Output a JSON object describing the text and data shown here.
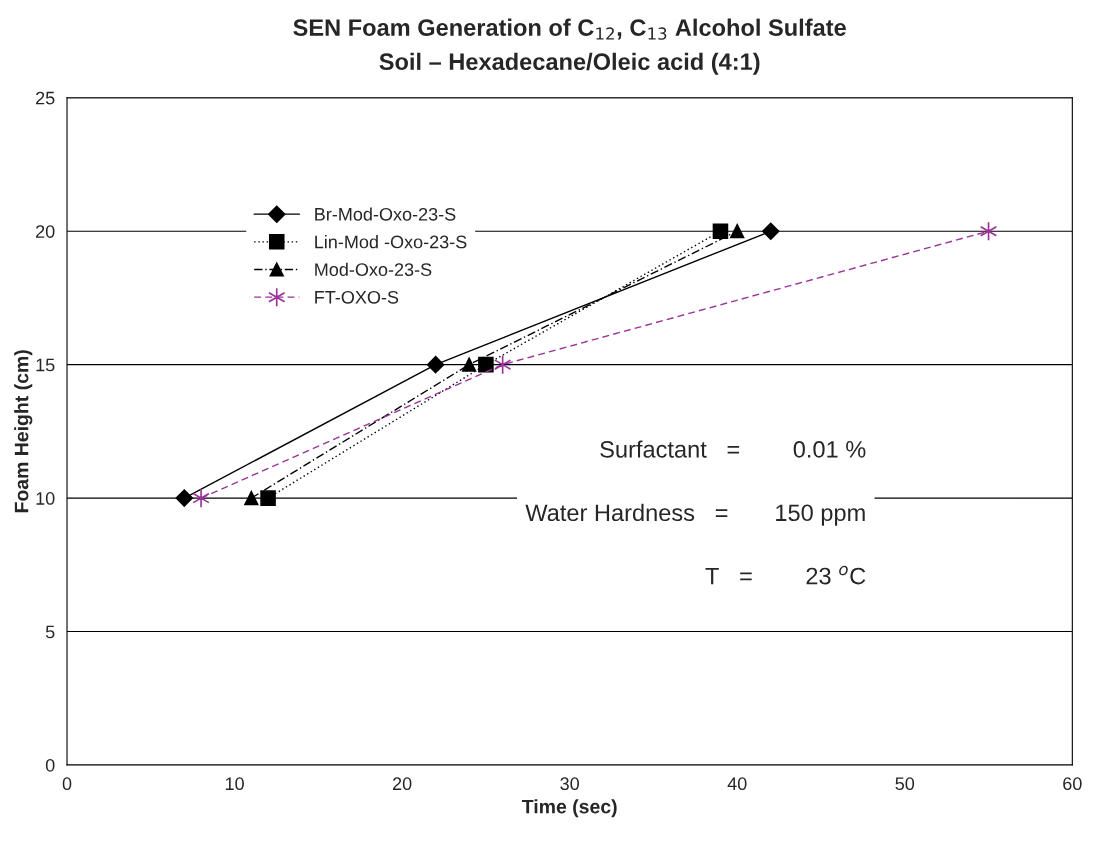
{
  "chart_data": {
    "type": "line",
    "title": "SEN Foam Generation of C$_{12}$, C$_{13}$ Alcohol Sulfate",
    "subtitle": "Soil – Hexadecane/Oleic acid (4:1)",
    "xlabel": "Time (sec)",
    "ylabel": "Foam Height (cm)",
    "series": [
      {
        "name": "Br-Mod-Oxo-23-S",
        "color": "#000000",
        "marker": "diamond",
        "line_style": "solid",
        "x": [
          7,
          22,
          42
        ],
        "values": [
          10,
          15,
          20
        ]
      },
      {
        "name": "Lin-Mod -Oxo-23-S",
        "color": "#000000",
        "marker": "square",
        "line_style": "dotted",
        "x": [
          12,
          25,
          39
        ],
        "values": [
          10,
          15,
          20
        ]
      },
      {
        "name": "Mod-Oxo-23-S",
        "color": "#000000",
        "marker": "triangle",
        "line_style": "dashdot",
        "x": [
          11,
          24,
          40
        ],
        "values": [
          10,
          15,
          20
        ]
      },
      {
        "name": "FT-OXO-S",
        "color": "#993399",
        "marker": "cross",
        "line_style": "dashed",
        "x": [
          8,
          26,
          55
        ],
        "values": [
          10,
          15,
          20
        ]
      }
    ],
    "xlim": [
      0,
      60
    ],
    "xticks": [
      0,
      10,
      20,
      30,
      40,
      50,
      60
    ],
    "ylim": [
      0,
      25
    ],
    "yticks": [
      0,
      5,
      10,
      15,
      20,
      25
    ],
    "grid": "y",
    "legend": "top left",
    "annotations": [
      "Surfactant   =        0.01 %",
      "Water Hardness   =       150 ppm",
      "T   =        23 $^{o}$C"
    ]
  }
}
